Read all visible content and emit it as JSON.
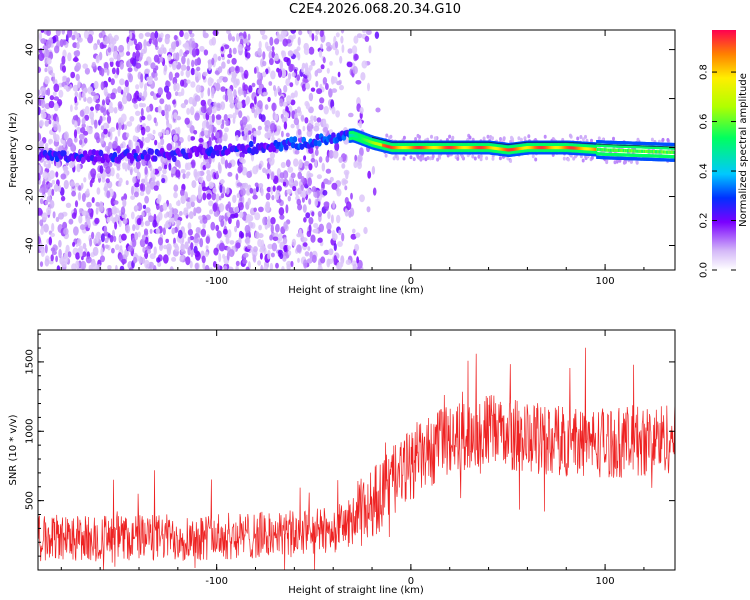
{
  "title": "C2E4.2026.068.20.34.G10",
  "colors": {
    "snr_line": "#ee2222",
    "axis": "#000000"
  },
  "chart_data": [
    {
      "type": "heatmap",
      "xlabel": "Height of straight line (km)",
      "ylabel": "Frequency (Hz)",
      "xlim": [
        -192,
        136
      ],
      "ylim": [
        -50,
        48
      ],
      "xticks": [
        -100,
        0,
        100
      ],
      "yticks": [
        -40,
        -20,
        0,
        20,
        40
      ],
      "xticklabels": [
        "-100",
        "0",
        "100"
      ],
      "yticklabels": [
        "-40",
        "-20",
        "0",
        "20",
        "40"
      ],
      "colorbar": {
        "label": "Normalized spectral amplitude",
        "range": [
          0,
          0.97
        ],
        "ticks": [
          0.0,
          0.2,
          0.4,
          0.6,
          0.8
        ],
        "ticklabels": [
          "0.0",
          "0.2",
          "0.4",
          "0.6",
          "0.8"
        ],
        "colormap": "rainbow"
      },
      "ridge": {
        "description_points_x": [
          -192,
          -120,
          -80,
          -55,
          -40,
          -30,
          -20,
          -10,
          0,
          20,
          40,
          50,
          60,
          80,
          100,
          136
        ],
        "description_points_y": [
          -4,
          -3,
          0,
          2,
          4,
          5,
          2,
          0,
          0,
          0,
          0,
          -1,
          0,
          0,
          -1,
          -2
        ]
      }
    },
    {
      "type": "line",
      "xlabel": "Height of straight line (km)",
      "ylabel": "SNR (10 * v/v)",
      "xlim": [
        -192,
        136
      ],
      "ylim": [
        0,
        1730
      ],
      "xticks": [
        -100,
        0,
        100
      ],
      "yticks": [
        500,
        1000,
        1500
      ],
      "xticklabels": [
        "-100",
        "0",
        "100"
      ],
      "yticklabels": [
        "500",
        "1000",
        "1500"
      ],
      "trend": {
        "x": [
          -192,
          -150,
          -100,
          -60,
          -40,
          -30,
          -20,
          -10,
          0,
          10,
          20,
          40,
          60,
          80,
          100,
          120,
          136
        ],
        "y": [
          230,
          230,
          240,
          260,
          290,
          350,
          480,
          620,
          760,
          850,
          940,
          1010,
          950,
          930,
          920,
          930,
          960
        ]
      }
    }
  ]
}
